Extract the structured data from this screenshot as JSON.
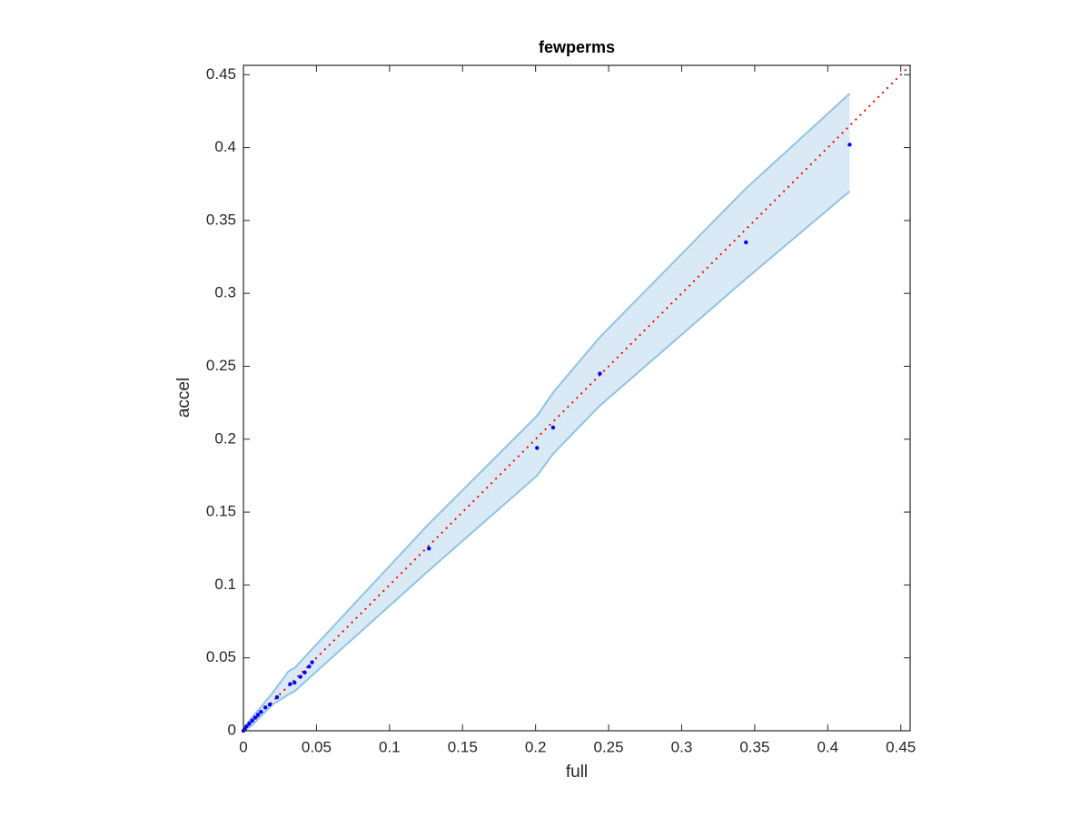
{
  "chart_data": {
    "type": "scatter",
    "title": "fewperms",
    "x_label": "full",
    "y_label": "accel",
    "series": [
      {
        "color": "#0000ff",
        "x": [
          0.415,
          0.344,
          0.244,
          0.212,
          0.201,
          0.127,
          0.047,
          0.045,
          0.042,
          0.039,
          0.035,
          0.032,
          0.023,
          0.018,
          0.015,
          0.012,
          0.01,
          0.008,
          0.006,
          0.004,
          0.002,
          0.001,
          0
        ],
        "values": [
          0.402,
          0.335,
          0.245,
          0.208,
          0.194,
          0.125,
          0.047,
          0.044,
          0.04,
          0.037,
          0.033,
          0.032,
          0.023,
          0.018,
          0.016,
          0.013,
          0.011,
          0.009,
          0.007,
          0.005,
          0.003,
          0.001,
          0
        ]
      }
    ],
    "band": {
      "color": "#8ec4e6",
      "fill": "#d9e9f5",
      "x": [
        0,
        0.005,
        0.01,
        0.02,
        0.031,
        0.035,
        0.047,
        0.127,
        0.201,
        0.212,
        0.244,
        0.344,
        0.415
      ],
      "upper": [
        0.001,
        0.008,
        0.014,
        0.026,
        0.041,
        0.043,
        0.056,
        0.142,
        0.216,
        0.232,
        0.27,
        0.372,
        0.437
      ],
      "lower": [
        0,
        0.003,
        0.008,
        0.018,
        0.025,
        0.027,
        0.038,
        0.11,
        0.175,
        0.19,
        0.223,
        0.31,
        0.37
      ]
    },
    "reference_line": {
      "color": "#ff0000",
      "x": [
        0,
        0.4564
      ],
      "values": [
        0,
        0.4564
      ]
    },
    "xlim": [
      0,
      0.4564
    ],
    "ylim": [
      0,
      0.4564
    ],
    "xticks": [
      0,
      0.05,
      0.1,
      0.15,
      0.2,
      0.25,
      0.3,
      0.35,
      0.4,
      0.45
    ],
    "yticks": [
      0,
      0.05,
      0.1,
      0.15,
      0.2,
      0.25,
      0.3,
      0.35,
      0.4,
      0.45
    ]
  }
}
